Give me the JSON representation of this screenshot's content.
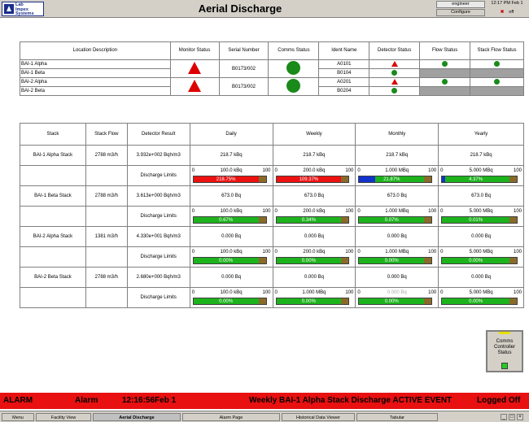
{
  "header": {
    "logo_text": [
      "Lab",
      "Impex",
      "Systems"
    ],
    "title": "Aerial Discharge",
    "user": "engineer",
    "configure_label": "Configure",
    "time": "12:17 PM Feb 1",
    "logoff_label": "off"
  },
  "location_table": {
    "headers": [
      "Location Description",
      "Monitor Status",
      "Serial Number",
      "Comms Status",
      "Ident Name",
      "Detector Status",
      "Flow Status",
      "Stack Flow Status"
    ],
    "rows": [
      {
        "location": "BAI-1 Alpha",
        "serial": "B0173/002",
        "ident": "A0101"
      },
      {
        "location": "BAI-1 Beta",
        "serial": "",
        "ident": "B0104"
      },
      {
        "location": "BAI-2 Alpha",
        "serial": "B0173/002",
        "ident": "A0201"
      },
      {
        "location": "BAI-2 Beta",
        "serial": "",
        "ident": "B0204"
      }
    ]
  },
  "stack_table": {
    "headers": [
      "Stack",
      "Stack Flow",
      "Detector Result",
      "Daily",
      "Weekly",
      "Monthly",
      "Yearly"
    ],
    "discharge_label": "Discharge Limits",
    "rows": [
      {
        "stack": "BAI-1 Alpha Stack",
        "flow": "2788 m3/h",
        "result": "3.932e+002 Bqh/m3",
        "values": [
          "218.7 kBq",
          "218.7 kBq",
          "218.7 kBq",
          "218.7 kBq"
        ],
        "limits": [
          {
            "min": "0",
            "limit": "100.0 kBq",
            "max": "100",
            "pct_label": "218.75%",
            "pct": 100,
            "state": "red"
          },
          {
            "min": "0",
            "limit": "200.0 kBq",
            "max": "100",
            "pct_label": "109.37%",
            "pct": 100,
            "state": "red"
          },
          {
            "min": "0",
            "limit": "1.000 MBq",
            "max": "100",
            "pct_label": "21.87%",
            "pct": 21.87,
            "state": "blue"
          },
          {
            "min": "0",
            "limit": "5.000 MBq",
            "max": "100",
            "pct_label": "4.37%",
            "pct": 4.37,
            "state": "blue"
          }
        ]
      },
      {
        "stack": "BAI-1 Beta Stack",
        "flow": "2788 m3/h",
        "result": "3.613e+000 Bqh/m3",
        "values": [
          "673.0 Bq",
          "673.0 Bq",
          "673.0 Bq",
          "673.0 Bq"
        ],
        "limits": [
          {
            "min": "0",
            "limit": "100.0 kBq",
            "max": "100",
            "pct_label": "0.67%",
            "pct": 0.67,
            "state": "green"
          },
          {
            "min": "0",
            "limit": "200.0 kBq",
            "max": "100",
            "pct_label": "0.34%",
            "pct": 0.34,
            "state": "green"
          },
          {
            "min": "0",
            "limit": "1.000 MBq",
            "max": "100",
            "pct_label": "0.07%",
            "pct": 0.07,
            "state": "green"
          },
          {
            "min": "0",
            "limit": "5.000 MBq",
            "max": "100",
            "pct_label": "0.01%",
            "pct": 0.01,
            "state": "green"
          }
        ]
      },
      {
        "stack": "BAI-2 Alpha Stack",
        "flow": "1381 m3/h",
        "result": "4.330e+001 Bqh/m3",
        "values": [
          "0.000 Bq",
          "0.000 Bq",
          "0.000 Bq",
          "0.000 Bq"
        ],
        "limits": [
          {
            "min": "0",
            "limit": "100.0 kBq",
            "max": "100",
            "pct_label": "0.00%",
            "pct": 0,
            "state": "green"
          },
          {
            "min": "0",
            "limit": "200.0 kBq",
            "max": "100",
            "pct_label": "0.00%",
            "pct": 0,
            "state": "green"
          },
          {
            "min": "0",
            "limit": "1.000 MBq",
            "max": "100",
            "pct_label": "0.00%",
            "pct": 0,
            "state": "green"
          },
          {
            "min": "0",
            "limit": "5.000 MBq",
            "max": "100",
            "pct_label": "0.00%",
            "pct": 0,
            "state": "green"
          }
        ]
      },
      {
        "stack": "BAI-2 Beta Stack",
        "flow": "2788 m3/h",
        "result": "2.680e+000 Bqh/m3",
        "values": [
          "0.000 Bq",
          "0.000 Bq",
          "0.000 Bq",
          "0.000 Bq"
        ],
        "limits": [
          {
            "min": "0",
            "limit": "100.0 kBq",
            "max": "100",
            "pct_label": "0.00%",
            "pct": 0,
            "state": "green"
          },
          {
            "min": "0",
            "limit": "1.000 MBq",
            "max": "100",
            "pct_label": "0.00%",
            "pct": 0,
            "state": "green"
          },
          {
            "min": "0",
            "limit": "0.000 Bq",
            "max": "100",
            "pct_label": "0.00%",
            "pct": 0,
            "state": "green"
          },
          {
            "min": "0",
            "limit": "5.000 MBq",
            "max": "100",
            "pct_label": "0.00%",
            "pct": 0,
            "state": "green"
          }
        ]
      }
    ]
  },
  "comms_controller": {
    "label": "Comms Controller Status"
  },
  "alarm_bar": {
    "type": "ALARM",
    "category": "Alarm",
    "time": "12:16:56Feb 1",
    "message": "Weekly BAI-1 Alpha Stack Discharge ACTIVE EVENT",
    "status": "Logged Off"
  },
  "nav": {
    "items": [
      "Menu",
      "Facility View",
      "Aerial Discharge",
      "Alarm Page",
      "Historical Data Viewer",
      "Tabular"
    ]
  },
  "colors": {
    "alarm": "#e81010",
    "ok": "#1db31d",
    "exceeded": "#ee1111",
    "fill": "#1133cc"
  }
}
